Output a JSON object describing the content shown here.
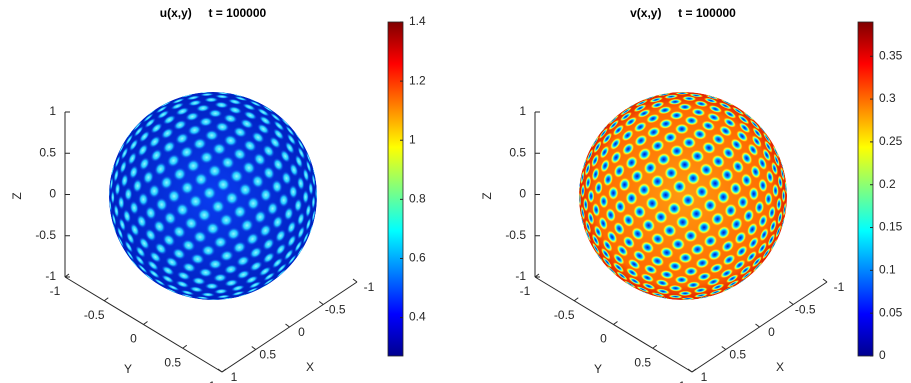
{
  "chart_data": [
    {
      "type": "sphere-surface",
      "title": "u(x,y)     t = 100000",
      "xlabel": "X",
      "ylabel": "Y",
      "zlabel": "Z",
      "xlim": [
        -1,
        1
      ],
      "xticks": [
        -1,
        -0.5,
        0,
        0.5,
        1
      ],
      "ylim": [
        -1,
        1
      ],
      "yticks": [
        -1,
        -0.5,
        0,
        0.5,
        1
      ],
      "zlim": [
        -1,
        1
      ],
      "zticks": [
        -1,
        -0.5,
        0,
        0.5,
        1
      ],
      "colormap": "jet",
      "clim": [
        0.27,
        1.4
      ],
      "cticks": [
        0.4,
        0.6,
        0.8,
        1,
        1.2,
        1.4
      ]
    },
    {
      "type": "sphere-surface",
      "title": "v(x,y)     t = 100000",
      "xlabel": "X",
      "ylabel": "Y",
      "zlabel": "Z",
      "xlim": [
        -1,
        1
      ],
      "xticks": [
        -1,
        -0.5,
        0,
        0.5,
        1
      ],
      "ylim": [
        -1,
        1
      ],
      "yticks": [
        -1,
        -0.5,
        0,
        0.5,
        1
      ],
      "zlim": [
        -1,
        1
      ],
      "zticks": [
        -1,
        -0.5,
        0,
        0.5,
        1
      ],
      "colormap": "jet",
      "clim": [
        0,
        0.39
      ],
      "cticks": [
        0,
        0.05,
        0.1,
        0.15,
        0.2,
        0.25,
        0.3,
        0.35
      ]
    }
  ]
}
